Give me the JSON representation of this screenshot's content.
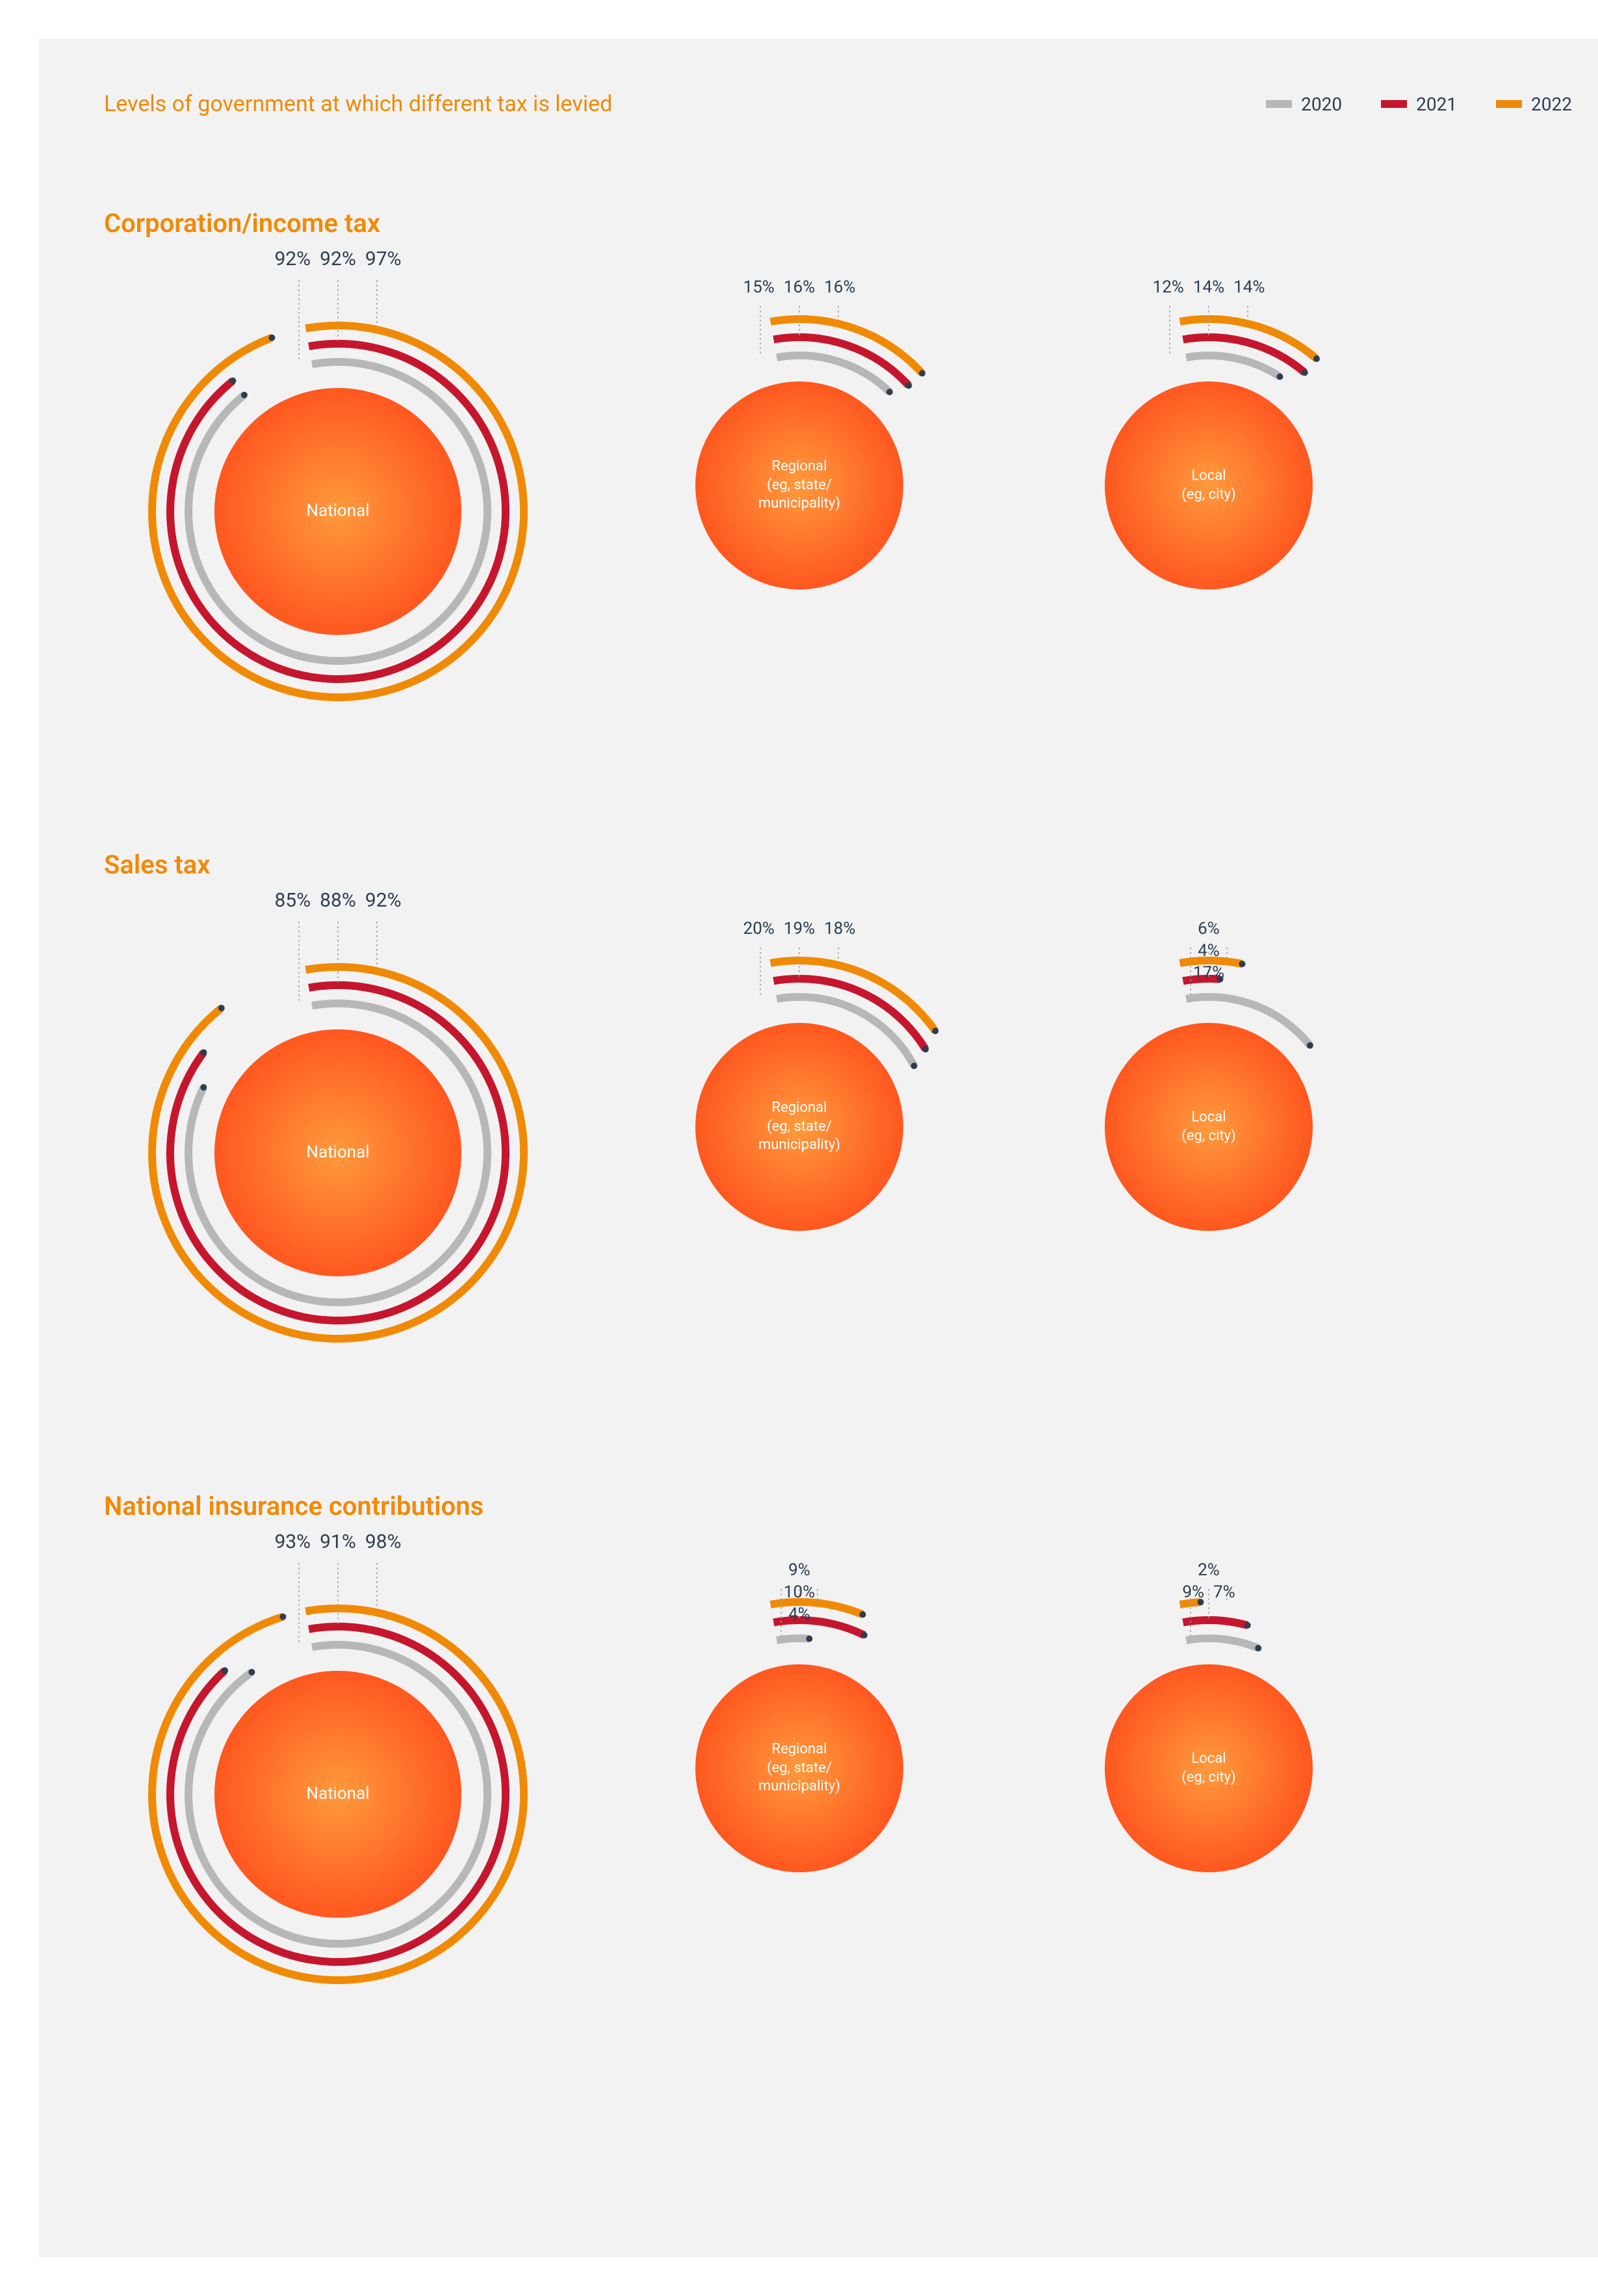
{
  "title": "Levels of government at which different tax is levied",
  "legend": [
    {
      "label": "2020",
      "color": "#b7b7b7"
    },
    {
      "label": "2021",
      "color": "#c5162e"
    },
    {
      "label": "2022",
      "color": "#f08a06"
    }
  ],
  "colors": {
    "title": "#f08a06",
    "section_title": "#f08a06",
    "text": "#2c3e50",
    "panel_bg": "#f2f2f2",
    "leader": "#9aa0a6",
    "grad_start": "#ff9a3c",
    "grad_end": "#ff4a1a",
    "ring_2020": "#b7b7b7",
    "ring_2021": "#c5162e",
    "ring_2022": "#f08a06"
  },
  "ring_stroke_width": 12,
  "leader_stroke_width": 1.5,
  "sections": [
    {
      "title": "Corporation/income tax",
      "charts": [
        {
          "label": "National",
          "size": "big",
          "values": {
            "2020": 92,
            "2021": 92,
            "2022": 97
          },
          "label_layout": "flat"
        },
        {
          "label": "Regional\n(eg, state/\nmunicipality)",
          "size": "small",
          "values": {
            "2020": 15,
            "2021": 16,
            "2022": 16
          },
          "label_layout": "flat"
        },
        {
          "label": "Local\n(eg, city)",
          "size": "small",
          "values": {
            "2020": 12,
            "2021": 14,
            "2022": 14
          },
          "label_layout": "flat"
        }
      ]
    },
    {
      "title": "Sales tax",
      "charts": [
        {
          "label": "National",
          "size": "big",
          "values": {
            "2020": 85,
            "2021": 88,
            "2022": 92
          },
          "label_layout": "flat"
        },
        {
          "label": "Regional\n(eg, state/\nmunicipality)",
          "size": "small",
          "values": {
            "2020": 20,
            "2021": 19,
            "2022": 18
          },
          "label_layout": "flat"
        },
        {
          "label": "Local\n(eg, city)",
          "size": "small",
          "values": {
            "2020": 17,
            "2021": 4,
            "2022": 6
          },
          "label_layout": "stacked",
          "stack_top": [
            "6%"
          ],
          "stack_mid": [
            "4%"
          ],
          "stack_bottom": [
            "17%"
          ]
        }
      ]
    },
    {
      "title": "National insurance contributions",
      "charts": [
        {
          "label": "National",
          "size": "big",
          "values": {
            "2020": 93,
            "2021": 91,
            "2022": 98
          },
          "label_layout": "flat"
        },
        {
          "label": "Regional\n(eg, state/\nmunicipality)",
          "size": "small",
          "values": {
            "2020": 4,
            "2021": 10,
            "2022": 9
          },
          "label_layout": "stacked",
          "stack_top": [
            "9%"
          ],
          "stack_mid": [
            "10%"
          ],
          "stack_bottom": [
            "4%"
          ]
        },
        {
          "label": "Local\n(eg, city)",
          "size": "small",
          "values": {
            "2020": 9,
            "2021": 7,
            "2022": 2
          },
          "label_layout": "stacked",
          "stack_top": [
            "2%"
          ],
          "stack_mid": [],
          "stack_bottom": [
            "9%",
            "7%"
          ]
        }
      ]
    }
  ]
}
